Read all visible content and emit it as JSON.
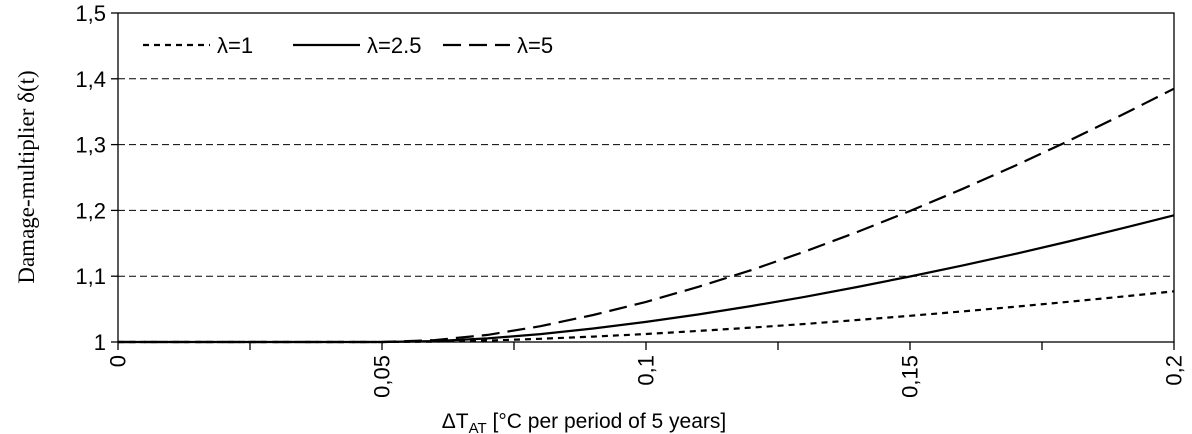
{
  "chart_data": {
    "type": "line",
    "title": "",
    "ylabel": "Damage-multiplier  δ(t)",
    "xlabel": {
      "prefix": "ΔT",
      "subscript": "AT",
      "suffix": "  [°C per period of 5 years]"
    },
    "xlim": [
      0,
      0.2
    ],
    "ylim": [
      1,
      1.5
    ],
    "xticks": [
      0,
      0.05,
      0.1,
      0.15,
      0.2
    ],
    "xtick_labels": [
      "0",
      "0,05",
      "0,1",
      "0,15",
      "0,2"
    ],
    "yticks": [
      1,
      1.1,
      1.2,
      1.3,
      1.4,
      1.5
    ],
    "ytick_labels": [
      "1",
      "1,1",
      "1,2",
      "1,3",
      "1,4",
      "1,5"
    ],
    "x_minor_step": 0.025,
    "grid": "horizontal-dashed",
    "legend_position": "top-left",
    "series": [
      {
        "name": "λ=1",
        "style": "short-dash",
        "color": "#000000",
        "x": [
          0,
          0.05,
          0.06,
          0.07,
          0.08,
          0.09,
          0.1,
          0.11,
          0.12,
          0.13,
          0.14,
          0.15,
          0.16,
          0.17,
          0.18,
          0.19,
          0.2
        ],
        "y": [
          1,
          1,
          1.0006,
          1.0022,
          1.0048,
          1.0082,
          1.0122,
          1.0168,
          1.0219,
          1.0274,
          1.0334,
          1.0398,
          1.0465,
          1.0536,
          1.0611,
          1.0689,
          1.077
        ]
      },
      {
        "name": "λ=2.5",
        "style": "solid",
        "color": "#000000",
        "x": [
          0,
          0.05,
          0.06,
          0.07,
          0.08,
          0.09,
          0.1,
          0.11,
          0.12,
          0.13,
          0.14,
          0.15,
          0.16,
          0.17,
          0.18,
          0.19,
          0.2
        ],
        "y": [
          1,
          1,
          1.0014,
          1.0054,
          1.012,
          1.0205,
          1.0305,
          1.042,
          1.0547,
          1.0686,
          1.0836,
          1.0995,
          1.1164,
          1.1341,
          1.1528,
          1.1723,
          1.1925
        ]
      },
      {
        "name": "λ=5",
        "style": "long-dash",
        "color": "#000000",
        "x": [
          0,
          0.05,
          0.06,
          0.07,
          0.08,
          0.09,
          0.1,
          0.11,
          0.12,
          0.13,
          0.14,
          0.15,
          0.16,
          0.17,
          0.18,
          0.19,
          0.2
        ],
        "y": [
          1,
          1,
          1.0029,
          1.0108,
          1.024,
          1.041,
          1.061,
          1.084,
          1.1094,
          1.1373,
          1.1672,
          1.1991,
          1.2328,
          1.2683,
          1.3055,
          1.3446,
          1.385
        ]
      }
    ]
  }
}
